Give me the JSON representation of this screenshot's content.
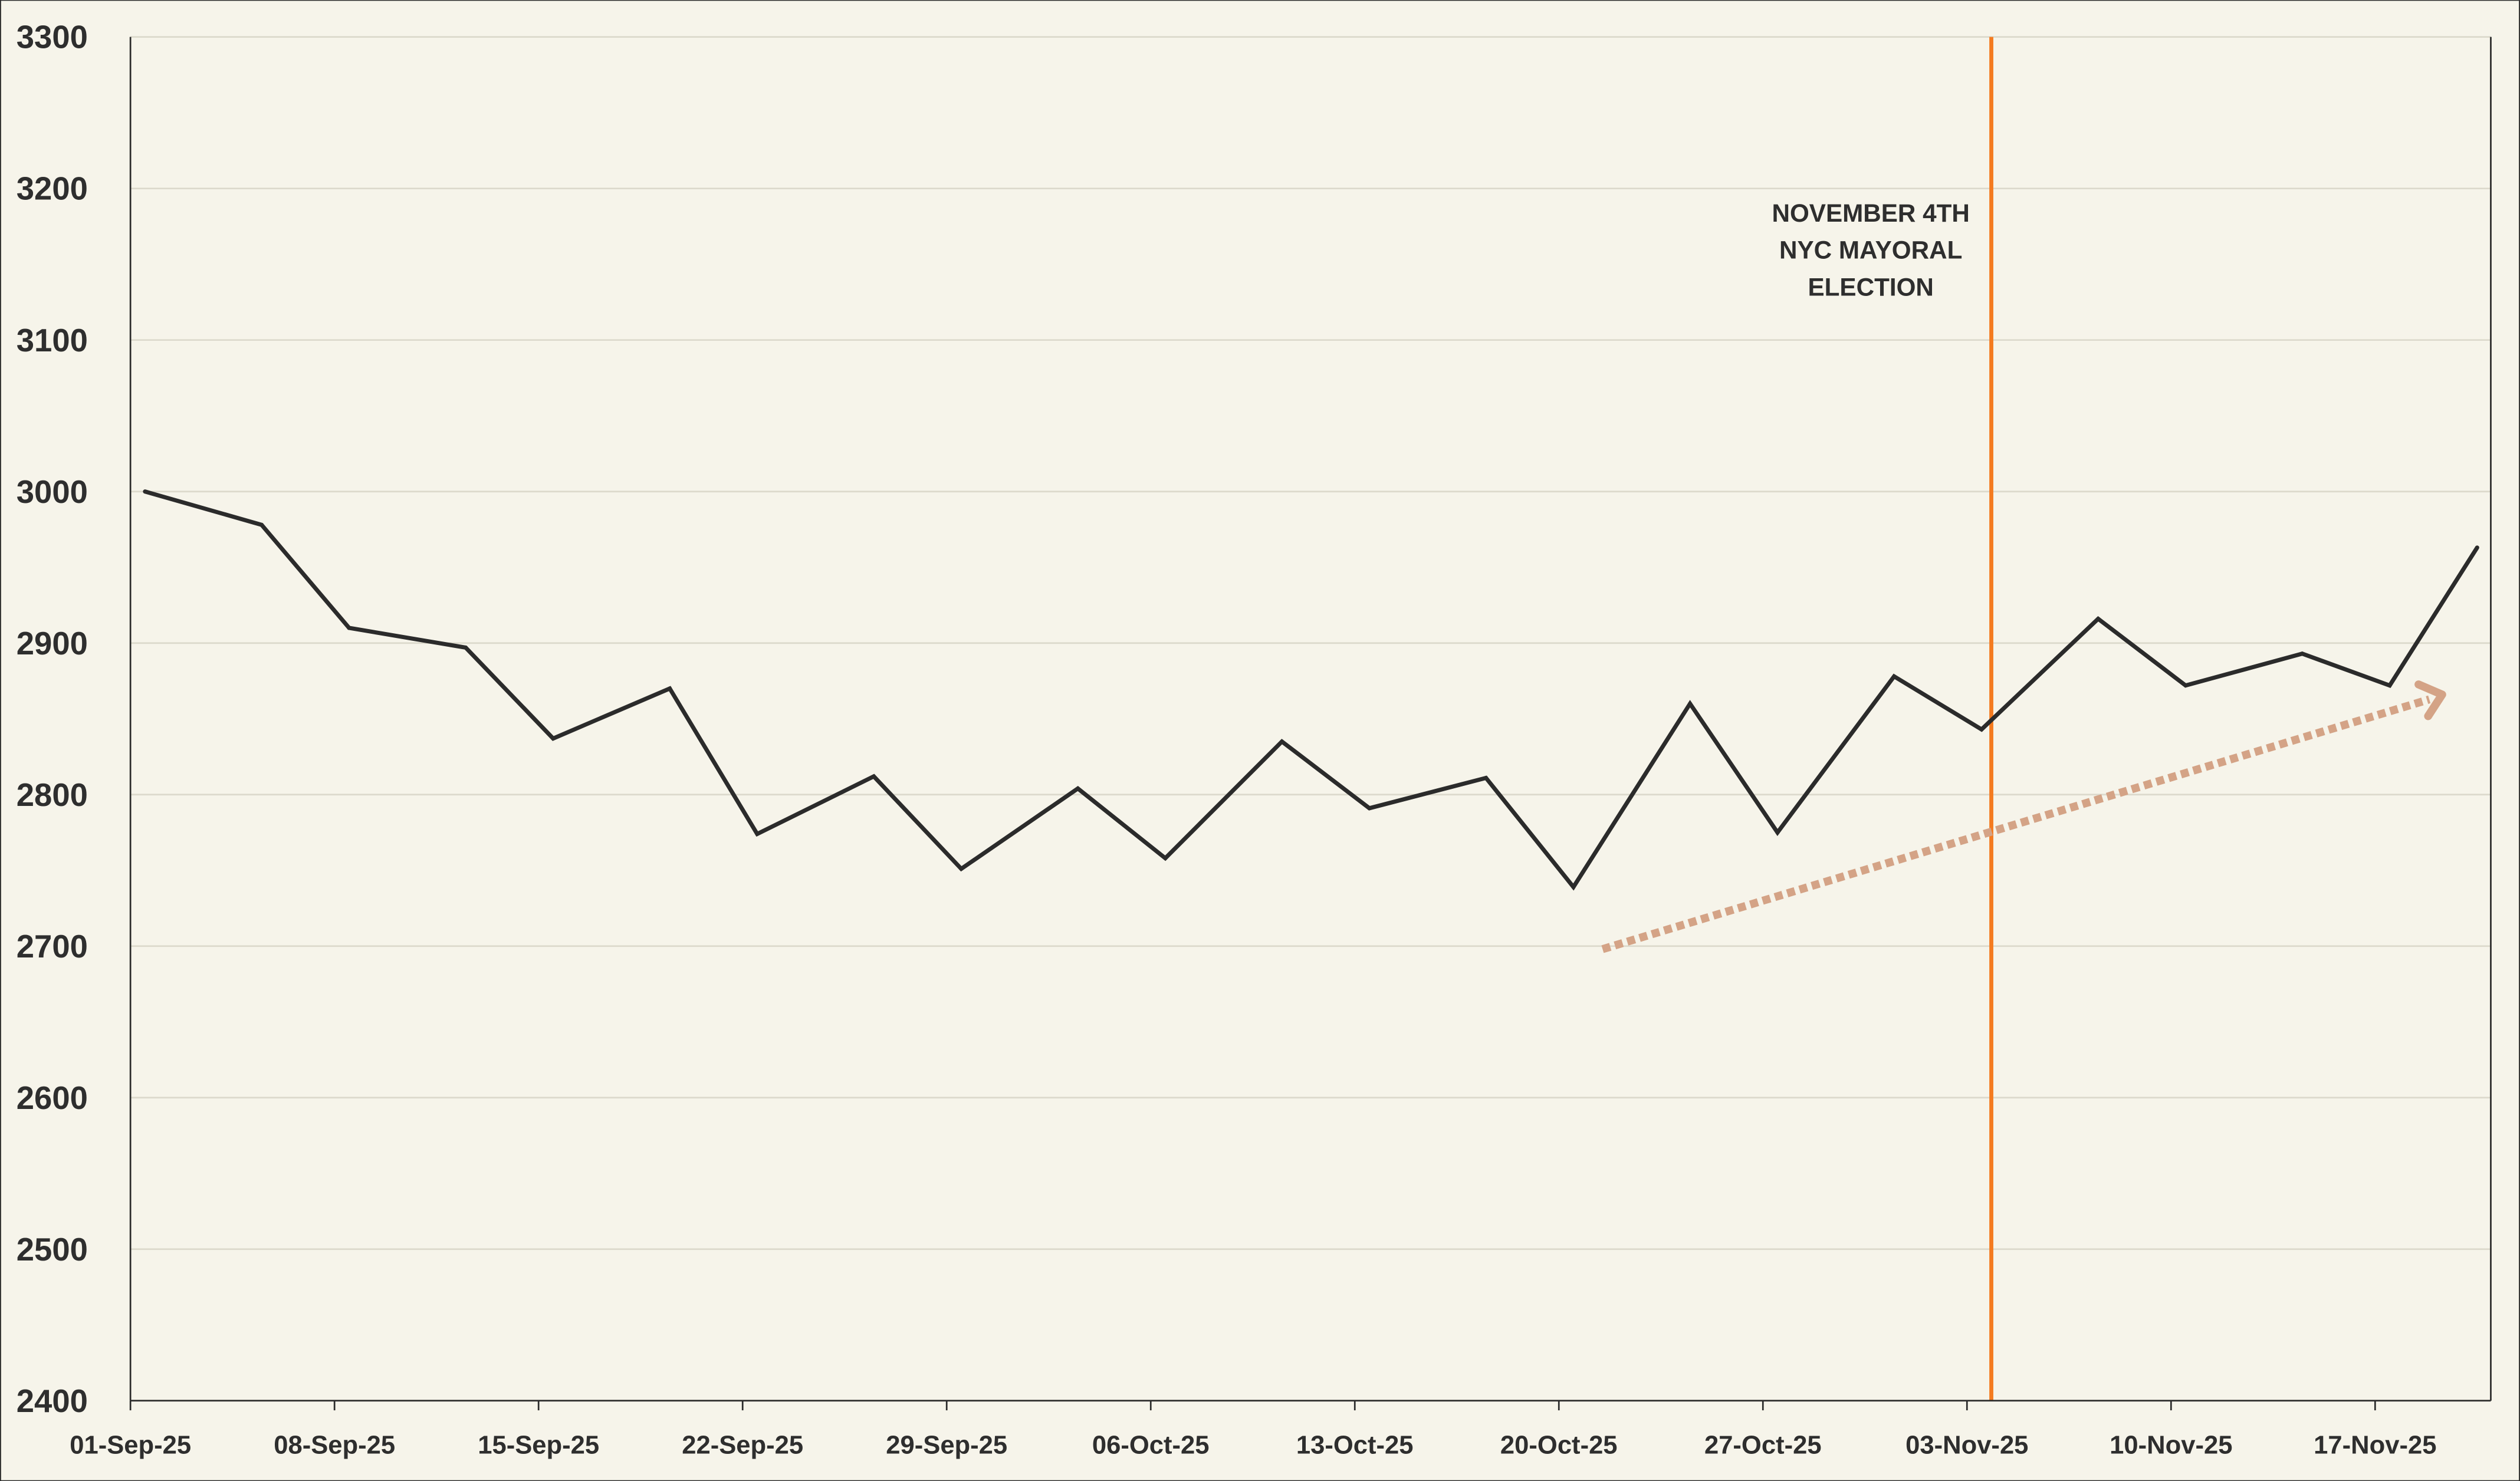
{
  "chart_data": {
    "type": "line",
    "title": "",
    "xlabel": "",
    "ylabel": "",
    "ylim": [
      2400,
      3300
    ],
    "yticks": [
      2400,
      2500,
      2600,
      2700,
      2800,
      2900,
      3000,
      3100,
      3200,
      3300
    ],
    "xlim": [
      "2025-09-01",
      "2025-11-22"
    ],
    "xtick_labels": [
      "01-Sep-25",
      "08-Sep-25",
      "15-Sep-25",
      "22-Sep-25",
      "29-Sep-25",
      "06-Oct-25",
      "13-Oct-25",
      "20-Oct-25",
      "27-Oct-25",
      "03-Nov-25",
      "10-Nov-25",
      "17-Nov-25"
    ],
    "xtick_dates": [
      "2025-09-01",
      "2025-09-08",
      "2025-09-15",
      "2025-09-22",
      "2025-09-29",
      "2025-10-06",
      "2025-10-13",
      "2025-10-20",
      "2025-10-27",
      "2025-11-03",
      "2025-11-10",
      "2025-11-17"
    ],
    "grid": "horizontal",
    "series": [
      {
        "x": [
          "2025-09-01",
          "2025-09-05",
          "2025-09-08",
          "2025-09-12",
          "2025-09-15",
          "2025-09-19",
          "2025-09-22",
          "2025-09-26",
          "2025-09-29",
          "2025-10-03",
          "2025-10-06",
          "2025-10-10",
          "2025-10-13",
          "2025-10-17",
          "2025-10-20",
          "2025-10-24",
          "2025-10-27",
          "2025-10-31",
          "2025-11-03",
          "2025-11-07",
          "2025-11-10",
          "2025-11-14",
          "2025-11-17",
          "2025-11-20"
        ],
        "values": [
          3000,
          2978,
          2910,
          2897,
          2837,
          2870,
          2774,
          2812,
          2751,
          2804,
          2758,
          2835,
          2791,
          2811,
          2739,
          2860,
          2775,
          2878,
          2843,
          2916,
          2872,
          2893,
          2872,
          2963
        ],
        "color": "#2b2b2b"
      }
    ],
    "event_line": {
      "date": "2025-11-04",
      "color": "#f47b20",
      "label_lines": [
        "NOVEMBER 4TH",
        "NYC MAYORAL",
        "ELECTION"
      ]
    },
    "trend_arrow": {
      "from": {
        "date": "2025-10-21",
        "value": 2698
      },
      "to": {
        "date": "2025-11-20",
        "value": 2866
      },
      "color": "#d4a386",
      "style": "dotted"
    },
    "colors": {
      "background": "#f6f4ea",
      "grid": "#dcd9cc",
      "axis": "#2b2b2b",
      "text": "#2e2e2e"
    }
  }
}
